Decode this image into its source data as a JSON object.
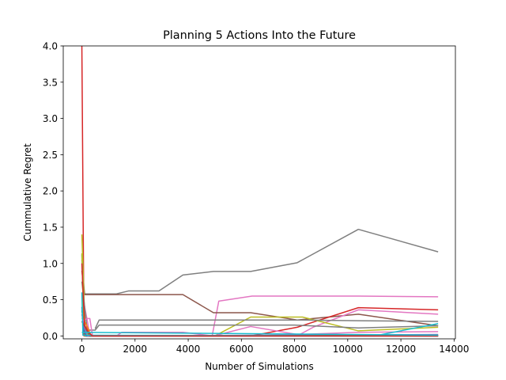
{
  "chart_data": {
    "type": "line",
    "title": "Planning 5 Actions Into the Future",
    "xlabel": "Number of Simulations",
    "ylabel": "Cummulative Regret",
    "xlim": [
      -700,
      14050
    ],
    "ylim": [
      -0.04,
      4.0
    ],
    "xticks": [
      0,
      2000,
      4000,
      6000,
      8000,
      10000,
      12000,
      14000
    ],
    "xtick_labels": [
      "0",
      "2000",
      "4000",
      "6000",
      "8000",
      "10000",
      "12000",
      "14000"
    ],
    "yticks": [
      0.0,
      0.5,
      1.0,
      1.5,
      2.0,
      2.5,
      3.0,
      3.5,
      4.0
    ],
    "ytick_labels": [
      "0.0",
      "0.5",
      "1.0",
      "1.5",
      "2.0",
      "2.5",
      "3.0",
      "3.5",
      "4.0"
    ],
    "grid": false,
    "legend": "none",
    "series": [
      {
        "color": "#7f7f7f",
        "points": [
          [
            0,
            1.05
          ],
          [
            100,
            0.58
          ],
          [
            1300,
            0.58
          ],
          [
            1750,
            0.62
          ],
          [
            2900,
            0.62
          ],
          [
            3800,
            0.84
          ],
          [
            4950,
            0.89
          ],
          [
            6350,
            0.89
          ],
          [
            8100,
            1.01
          ],
          [
            10400,
            1.47
          ],
          [
            13400,
            1.16
          ]
        ]
      },
      {
        "color": "#e377c2",
        "points": [
          [
            0,
            0.6
          ],
          [
            200,
            0.22
          ],
          [
            300,
            0.0
          ],
          [
            4900,
            0.0
          ],
          [
            5150,
            0.48
          ],
          [
            6400,
            0.55
          ],
          [
            10400,
            0.55
          ],
          [
            13400,
            0.54
          ]
        ]
      },
      {
        "color": "#8c564b",
        "points": [
          [
            0,
            0.9
          ],
          [
            100,
            0.57
          ],
          [
            3800,
            0.57
          ],
          [
            4950,
            0.32
          ],
          [
            6350,
            0.32
          ],
          [
            8100,
            0.22
          ],
          [
            10400,
            0.3
          ],
          [
            13400,
            0.14
          ]
        ]
      },
      {
        "color": "#d62728",
        "points": [
          [
            0,
            4.0
          ],
          [
            80,
            0.0
          ],
          [
            6350,
            0.0
          ],
          [
            8100,
            0.12
          ],
          [
            10400,
            0.39
          ],
          [
            13400,
            0.36
          ]
        ]
      },
      {
        "color": "#e377c2",
        "points": [
          [
            400,
            0.0
          ],
          [
            8100,
            0.0
          ],
          [
            8700,
            0.12
          ],
          [
            10400,
            0.36
          ],
          [
            13400,
            0.3
          ]
        ]
      },
      {
        "color": "#bcbd22",
        "points": [
          [
            0,
            1.4
          ],
          [
            120,
            0.1
          ],
          [
            250,
            0.0
          ],
          [
            5000,
            0.0
          ],
          [
            6350,
            0.26
          ],
          [
            8300,
            0.26
          ],
          [
            10400,
            0.07
          ],
          [
            13400,
            0.12
          ]
        ]
      },
      {
        "color": "#e377c2",
        "points": [
          [
            1300,
            0.0
          ],
          [
            1500,
            0.05
          ],
          [
            3800,
            0.05
          ],
          [
            4950,
            0.0
          ],
          [
            6350,
            0.13
          ],
          [
            8100,
            0.02
          ],
          [
            10400,
            0.05
          ],
          [
            13400,
            0.06
          ]
        ]
      },
      {
        "color": "#7f7f7f",
        "points": [
          [
            0,
            0.75
          ],
          [
            200,
            0.08
          ],
          [
            500,
            0.08
          ],
          [
            650,
            0.15
          ],
          [
            8000,
            0.15
          ],
          [
            10400,
            0.11
          ],
          [
            13400,
            0.14
          ]
        ]
      },
      {
        "color": "#7f7f7f",
        "points": [
          [
            500,
            0.1
          ],
          [
            650,
            0.22
          ],
          [
            8100,
            0.22
          ],
          [
            10400,
            0.21
          ],
          [
            13400,
            0.2
          ]
        ]
      },
      {
        "color": "#17becf",
        "points": [
          [
            0,
            1.12
          ],
          [
            80,
            0.2
          ],
          [
            200,
            0.0
          ],
          [
            11000,
            0.0
          ],
          [
            13400,
            0.17
          ]
        ]
      },
      {
        "color": "#2ca02c",
        "points": [
          [
            0,
            0.35
          ],
          [
            150,
            0.0
          ],
          [
            13400,
            0.0
          ]
        ]
      },
      {
        "color": "#ff7f0e",
        "points": [
          [
            0,
            0.25
          ],
          [
            100,
            0.2
          ],
          [
            200,
            0.13
          ],
          [
            350,
            0.0
          ],
          [
            13400,
            0.0
          ]
        ]
      },
      {
        "color": "#bcbd22",
        "points": [
          [
            0,
            1.14
          ],
          [
            60,
            0.3
          ],
          [
            120,
            0.0
          ],
          [
            13400,
            0.01
          ]
        ]
      },
      {
        "color": "#1f77b4",
        "points": [
          [
            0,
            0.4
          ],
          [
            60,
            0.1
          ],
          [
            150,
            0.0
          ],
          [
            13400,
            0.0
          ]
        ]
      },
      {
        "color": "#9467bd",
        "points": [
          [
            0,
            0.3
          ],
          [
            100,
            0.1
          ],
          [
            200,
            0.0
          ],
          [
            13400,
            0.02
          ]
        ]
      },
      {
        "color": "#8c564b",
        "points": [
          [
            0,
            0.2
          ],
          [
            150,
            0.1
          ],
          [
            300,
            0.0
          ],
          [
            13400,
            0.01
          ]
        ]
      },
      {
        "color": "#e377c2",
        "points": [
          [
            0,
            0.2
          ],
          [
            200,
            0.24
          ],
          [
            300,
            0.24
          ],
          [
            400,
            0.0
          ],
          [
            13400,
            0.0
          ]
        ]
      },
      {
        "color": "#17becf",
        "points": [
          [
            0,
            0.6
          ],
          [
            40,
            0.01
          ],
          [
            13400,
            0.0
          ]
        ]
      },
      {
        "color": "#d62728",
        "points": [
          [
            0,
            1.0
          ],
          [
            100,
            0.15
          ],
          [
            250,
            0.05
          ],
          [
            400,
            0.0
          ],
          [
            13400,
            0.0
          ]
        ]
      },
      {
        "color": "#17becf",
        "points": [
          [
            0,
            0.05
          ],
          [
            13400,
            0.01
          ]
        ]
      }
    ]
  }
}
